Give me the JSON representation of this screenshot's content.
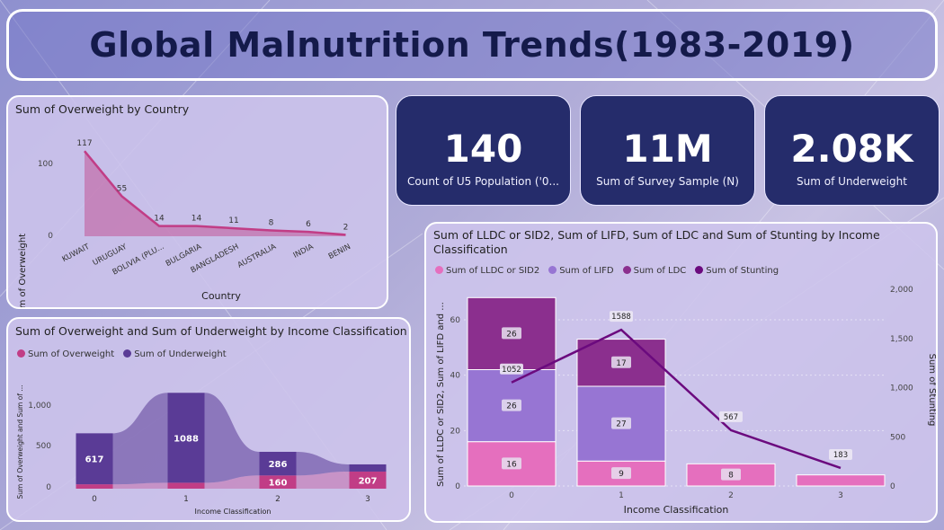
{
  "header": {
    "title": "Global Malnutrition Trends(1983-2019)"
  },
  "kpis": [
    {
      "value": "140",
      "label": "Count of U5 Population ('0..."
    },
    {
      "value": "11M",
      "label": "Sum of Survey Sample (N)"
    },
    {
      "value": "2.08K",
      "label": "Sum of Underweight"
    }
  ],
  "overweight_chart": {
    "title": "Sum of Overweight by Country",
    "ylabel": "Sum of Overweight",
    "xlabel": "Country",
    "yticks": [
      "100",
      "0"
    ]
  },
  "income_chart": {
    "title": "Sum of Overweight and Sum of Underweight by Income Classification",
    "ylabel": "Sum of Overweight and Sum of ...",
    "xlabel": "Income Classification",
    "yticks": [
      "1,000",
      "500",
      "0"
    ],
    "legend": [
      "Sum of Overweight",
      "Sum of Underweight"
    ]
  },
  "combo_chart": {
    "title": "Sum of LLDC or SID2, Sum of LIFD, Sum of LDC and Sum of Stunting by Income Classification",
    "ylabel_left": "Sum of LLDC or SID2, Sum of LIFD and ...",
    "ylabel_right": "Sum of Stunting",
    "xlabel": "Income Classification",
    "yticks_left": [
      "60",
      "40",
      "20",
      "0"
    ],
    "yticks_right": [
      "2,000",
      "1,500",
      "1,000",
      "500",
      "0"
    ],
    "legend": [
      "Sum of LLDC or SID2",
      "Sum of LIFD",
      "Sum of LDC",
      "Sum of Stunting"
    ]
  },
  "colors": {
    "overweight": "#c13d86",
    "underweight": "#5a3b96",
    "lldc": "#e56fbe",
    "lifd": "#9775d3",
    "ldc": "#8b2f8e",
    "stunting": "#6b0a7e",
    "kpi_bg": "#252c6b"
  },
  "chart_data": [
    {
      "type": "area",
      "title": "Sum of Overweight by Country",
      "xlabel": "Country",
      "ylabel": "Sum of Overweight",
      "categories": [
        "KUWAIT",
        "URUGUAY",
        "BOLIVIA (PLU...",
        "BULGARIA",
        "BANGLADESH",
        "AUSTRALIA",
        "INDIA",
        "BENIN"
      ],
      "values": [
        117,
        55,
        14,
        14,
        11,
        8,
        6,
        2
      ],
      "ylim": [
        0,
        130
      ]
    },
    {
      "type": "bar",
      "title": "Sum of Overweight and Sum of Underweight by Income Classification",
      "xlabel": "Income Classification",
      "ylabel": "Sum of Overweight and Sum of ...",
      "categories": [
        "0",
        "1",
        "2",
        "3"
      ],
      "series": [
        {
          "name": "Sum of Overweight",
          "values": [
            53,
            72,
            160,
            207
          ]
        },
        {
          "name": "Sum of Underweight",
          "values": [
            617,
            1088,
            286,
            87
          ]
        }
      ],
      "labels": [
        {
          "series": "Sum of Underweight",
          "category": "0",
          "text": "617"
        },
        {
          "series": "Sum of Underweight",
          "category": "1",
          "text": "1088"
        },
        {
          "series": "Sum of Underweight",
          "category": "2",
          "text": "286"
        },
        {
          "series": "Sum of Overweight",
          "category": "2",
          "text": "160"
        },
        {
          "series": "Sum of Overweight",
          "category": "3",
          "text": "207"
        }
      ],
      "ylim": [
        0,
        1300
      ]
    },
    {
      "type": "bar",
      "title": "Sum of LLDC or SID2, Sum of LIFD, Sum of LDC and Sum of Stunting by Income Classification",
      "xlabel": "Income Classification",
      "categories": [
        "0",
        "1",
        "2",
        "3"
      ],
      "series": [
        {
          "name": "Sum of LLDC or SID2",
          "values": [
            16,
            9,
            8,
            4
          ]
        },
        {
          "name": "Sum of LIFD",
          "values": [
            26,
            27,
            0,
            0
          ]
        },
        {
          "name": "Sum of LDC",
          "values": [
            26,
            17,
            0,
            0
          ]
        },
        {
          "name": "Sum of Stunting",
          "values": [
            1052,
            1588,
            567,
            183
          ],
          "axis": "right",
          "type": "line"
        }
      ],
      "ylim_left": [
        0,
        70
      ],
      "ylim_right": [
        0,
        2200
      ]
    }
  ]
}
